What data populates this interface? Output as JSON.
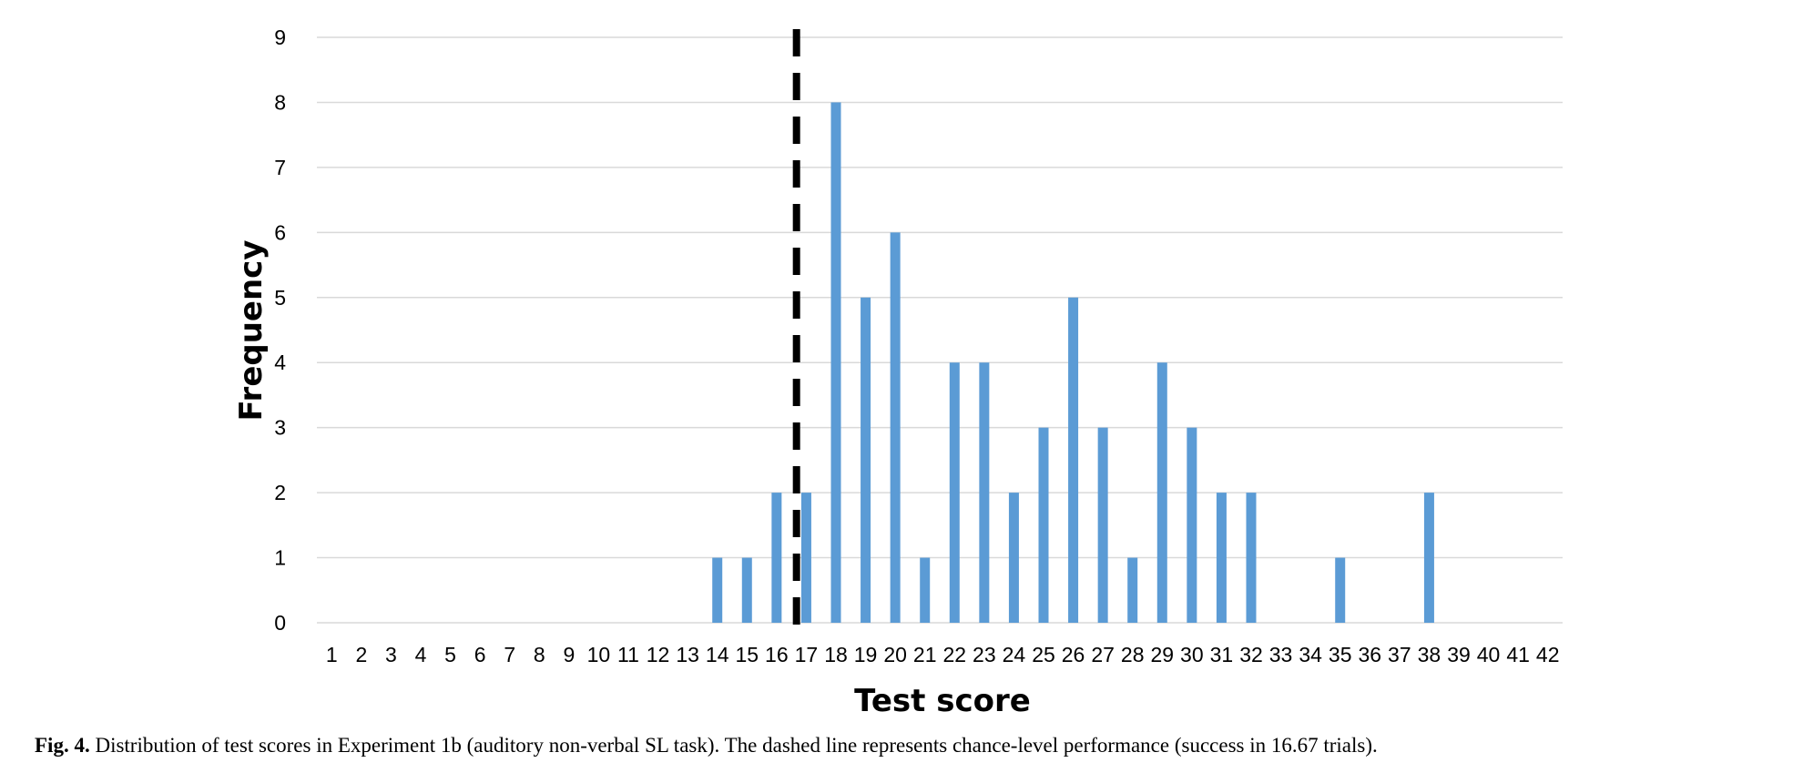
{
  "chart_data": {
    "type": "bar",
    "xlabel": "Test score",
    "ylabel": "Frequency",
    "categories": [
      "1",
      "2",
      "3",
      "4",
      "5",
      "6",
      "7",
      "8",
      "9",
      "10",
      "11",
      "12",
      "13",
      "14",
      "15",
      "16",
      "17",
      "18",
      "19",
      "20",
      "21",
      "22",
      "23",
      "24",
      "25",
      "26",
      "27",
      "28",
      "29",
      "30",
      "31",
      "32",
      "33",
      "34",
      "35",
      "36",
      "37",
      "38",
      "39",
      "40",
      "41",
      "42"
    ],
    "values": [
      0,
      0,
      0,
      0,
      0,
      0,
      0,
      0,
      0,
      0,
      0,
      0,
      0,
      1,
      1,
      2,
      2,
      8,
      5,
      6,
      1,
      4,
      4,
      2,
      3,
      5,
      3,
      1,
      4,
      3,
      2,
      2,
      0,
      0,
      1,
      0,
      0,
      2,
      0,
      0,
      0,
      0
    ],
    "yticks": [
      "0",
      "1",
      "2",
      "3",
      "4",
      "5",
      "6",
      "7",
      "8",
      "9"
    ],
    "ylim": [
      0,
      9
    ],
    "grid": true,
    "legend": "none",
    "bar_color": "#5b9bd5",
    "grid_color": "#d9d9d9",
    "reference_line": {
      "x": 16.67,
      "style": "dashed",
      "color": "#000000"
    }
  },
  "caption": {
    "label": "Fig. 4.",
    "text": " Distribution of test scores in Experiment 1b (auditory non-verbal SL task). The dashed line represents chance-level performance (success in 16.67 trials)."
  }
}
